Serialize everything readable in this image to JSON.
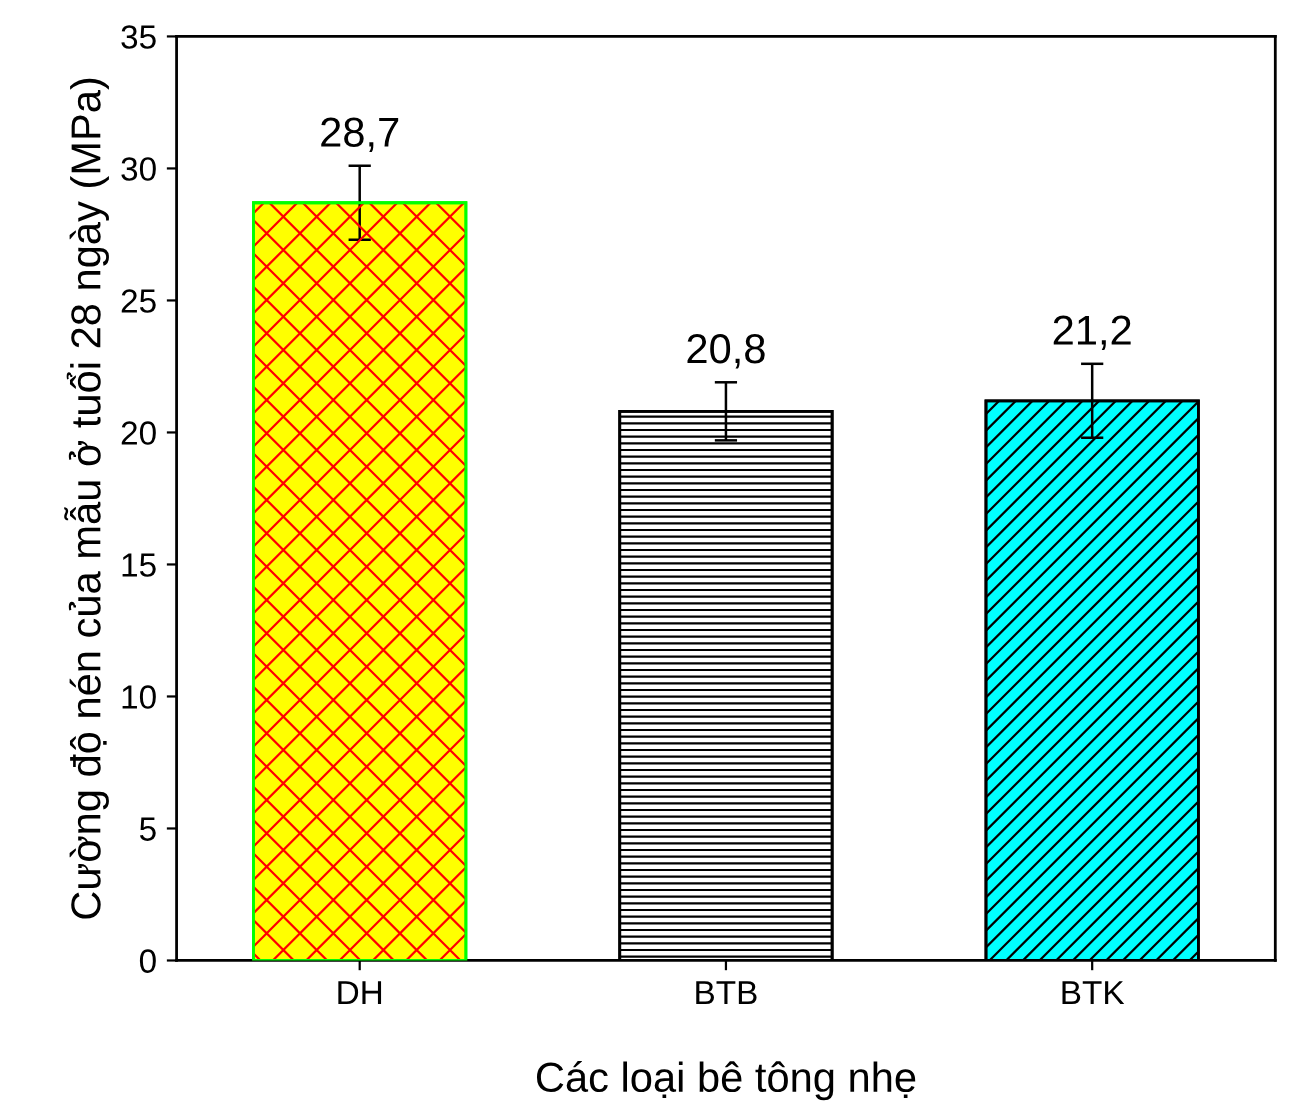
{
  "chart_data": {
    "type": "bar",
    "xlabel": "Các loại bê tông nhẹ",
    "ylabel": "Cường độ nén của mẫu ở tuổi 28 ngày (MPa)",
    "categories": [
      "DH",
      "BTB",
      "BTK"
    ],
    "values": [
      28.7,
      20.8,
      21.2
    ],
    "errors": [
      1.4,
      1.1,
      1.4
    ],
    "colors": [
      "#ffff00",
      "#ffffff",
      "#00ffff"
    ],
    "data_labels": true,
    "value_labels": [
      "28,7",
      "20,8",
      "21,2"
    ],
    "ylim": [
      0,
      35
    ],
    "yticks": [
      0,
      5,
      10,
      15,
      20,
      25,
      30,
      35
    ],
    "grid": false,
    "legend": false
  }
}
